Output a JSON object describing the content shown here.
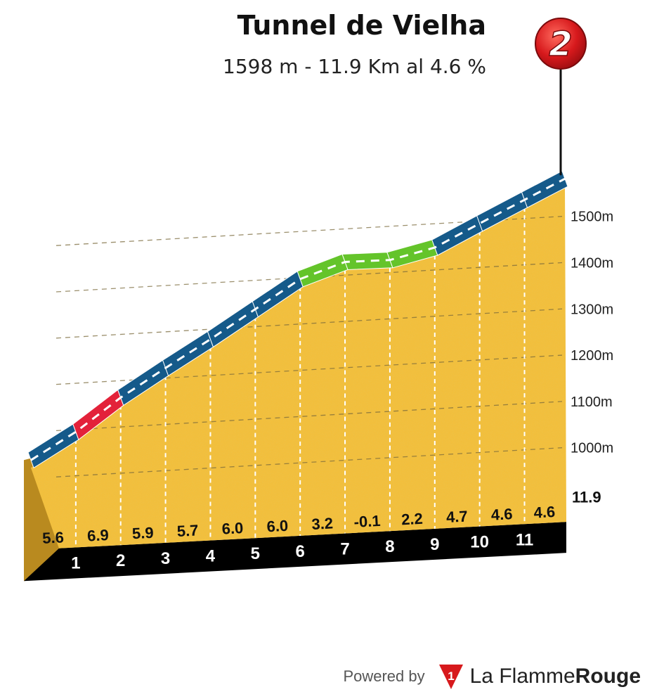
{
  "header": {
    "title": "Tunnel de Vielha",
    "subtitle": "1598 m - 11.9 Km al 4.6 %"
  },
  "badge": {
    "label": "2",
    "color": "#d7191c"
  },
  "footer": {
    "powered_by": "Powered by",
    "logo_mark": "1",
    "brand_light": "La Flamme",
    "brand_bold": "Rouge"
  },
  "colors": {
    "fill": "#f2bf3c",
    "difficulty_hard": "#e3223a",
    "difficulty_medium": "#155a8a",
    "difficulty_easy": "#64c42a",
    "base": "#000000"
  },
  "chart_data": {
    "type": "area",
    "title": "Tunnel de Vielha",
    "subtitle": "1598 m - 11.9 Km al 4.6 %",
    "x_unit": "km",
    "y_unit": "m",
    "ylim": [
      900,
      1600
    ],
    "y_ticks": [
      "1000m",
      "1100m",
      "1200m",
      "1300m",
      "1400m",
      "1500m"
    ],
    "y_tick_values": [
      1000,
      1100,
      1200,
      1300,
      1400,
      1500
    ],
    "total_distance_label": "11.9",
    "km_markers": [
      "1",
      "2",
      "3",
      "4",
      "5",
      "6",
      "7",
      "8",
      "9",
      "10",
      "11"
    ],
    "distance_km": [
      0,
      1,
      2,
      3,
      4,
      5,
      6,
      7,
      8,
      9,
      10,
      11,
      11.9
    ],
    "elevation_m": [
      1050,
      1106,
      1175,
      1234,
      1291,
      1351,
      1411,
      1443,
      1442,
      1464,
      1511,
      1557,
      1598
    ],
    "segment_gradients_pct": [
      "5.6",
      "6.9",
      "5.9",
      "5.7",
      "6.0",
      "6.0",
      "3.2",
      "-0.1",
      "2.2",
      "4.7",
      "4.6",
      "4.6"
    ],
    "segment_difficulty": [
      "medium",
      "hard",
      "medium",
      "medium",
      "medium",
      "medium",
      "easy",
      "easy",
      "easy",
      "medium",
      "medium",
      "medium"
    ],
    "grid": true,
    "legend": "none"
  }
}
